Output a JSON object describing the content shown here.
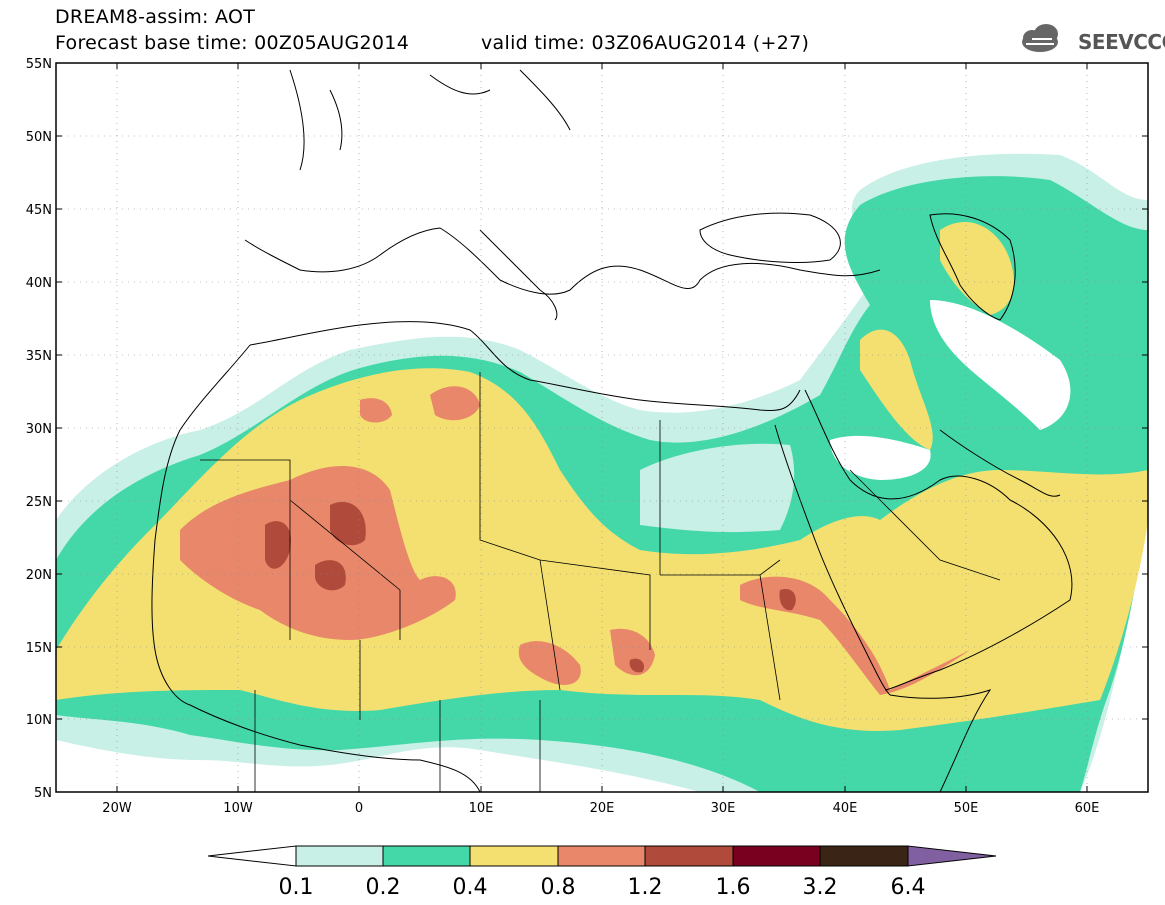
{
  "header": {
    "title": "DREAM8-assim: AOT",
    "base_time": "Forecast base time: 00Z05AUG2014",
    "valid_time": "valid time: 03Z06AUG2014 (+27)",
    "logo_text": "SEEVCCC"
  },
  "map": {
    "lat_ticks": [
      "55N",
      "50N",
      "45N",
      "40N",
      "35N",
      "30N",
      "25N",
      "20N",
      "15N",
      "10N",
      "5N"
    ],
    "lon_ticks": [
      "20W",
      "10W",
      "0",
      "10E",
      "20E",
      "30E",
      "40E",
      "50E",
      "60E"
    ],
    "lon_range": [
      -25,
      65
    ],
    "lat_range": [
      5,
      55
    ]
  },
  "legend": {
    "levels": [
      "0.1",
      "0.2",
      "0.4",
      "0.8",
      "1.2",
      "1.6",
      "3.2",
      "6.4"
    ],
    "colors": [
      "#ffffff",
      "#c8f0e6",
      "#44d8a8",
      "#f4e070",
      "#e8876a",
      "#b04a3a",
      "#7a0020",
      "#3a2416",
      "#8060a0"
    ]
  }
}
